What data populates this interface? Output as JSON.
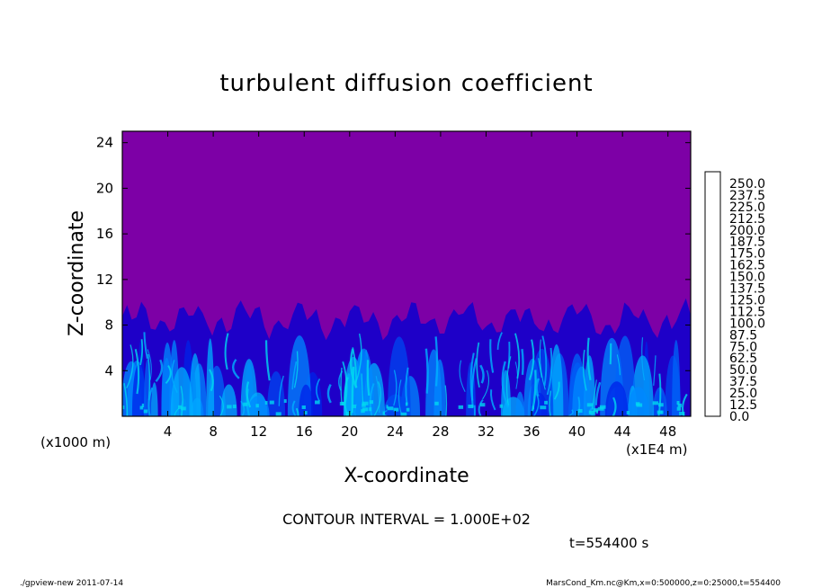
{
  "chart_data": {
    "type": "heatmap",
    "title": "turbulent diffusion coefficient",
    "xlabel": "X-coordinate",
    "ylabel": "Z-coordinate",
    "y_unit_label": "(x1000 m)",
    "x_unit_label": "(x1E4 m)",
    "xlim": [
      0,
      50
    ],
    "ylim": [
      0,
      25
    ],
    "x_ticks": [
      "4",
      "8",
      "12",
      "16",
      "20",
      "24",
      "28",
      "32",
      "36",
      "40",
      "44",
      "48"
    ],
    "y_ticks": [
      "4",
      "8",
      "12",
      "16",
      "20",
      "24"
    ],
    "contour_interval": "CONTOUR INTERVAL = 1.000E+02",
    "time_label": "t=554400 s",
    "colorbar": {
      "levels": [
        "0.0",
        "12.5",
        "25.0",
        "37.5",
        "50.0",
        "62.5",
        "75.0",
        "87.5",
        "100.0",
        "112.5",
        "125.0",
        "137.5",
        "150.0",
        "162.5",
        "175.0",
        "187.5",
        "200.0",
        "212.5",
        "225.0",
        "237.5",
        "250.0"
      ],
      "colors": [
        "#7d00a6",
        "#1e00c8",
        "#0022e8",
        "#0046f0",
        "#0066f8",
        "#0088ff",
        "#00b0ff",
        "#00d8f0",
        "#00e6b0",
        "#00e070",
        "#10d840",
        "#50e020",
        "#90e800",
        "#c8e800",
        "#f0e000",
        "#ffc000",
        "#ff9600",
        "#ff6600",
        "#f03c20",
        "#f05a5a",
        "#f08c8c"
      ]
    },
    "upper_region_value": "0.0",
    "turbulent_layer_top_z": 8.5
  },
  "footer": {
    "left": "./gpview-new   2011-07-14",
    "right": "MarsCond_Km.nc@Km,x=0:500000,z=0:25000,t=554400"
  }
}
